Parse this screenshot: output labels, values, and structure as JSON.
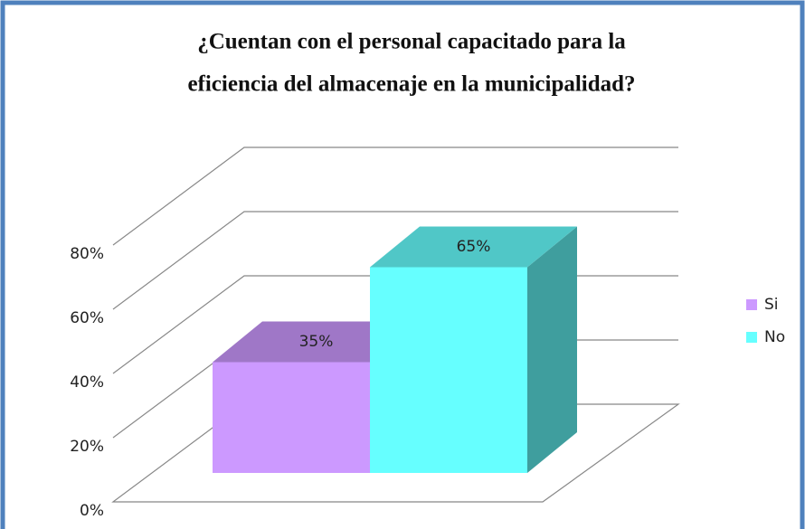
{
  "chart_data": {
    "type": "bar3d",
    "title": [
      "¿Cuentan con el personal capacitado para la",
      "eficiencia del almacenaje en la municipalidad?"
    ],
    "categories": [
      null
    ],
    "series": [
      {
        "name": "Si",
        "color": "#cc99ff",
        "values": [
          35
        ],
        "value_labels": [
          "35%"
        ]
      },
      {
        "name": "No",
        "color": "#66ffff",
        "values": [
          65
        ],
        "value_labels": [
          "65%"
        ]
      }
    ],
    "ylim": [
      0,
      80
    ],
    "yticks": [
      {
        "value": 0,
        "label": "0%"
      },
      {
        "value": 20,
        "label": "20%"
      },
      {
        "value": 40,
        "label": "40%"
      },
      {
        "value": 60,
        "label": "60%"
      },
      {
        "value": 80,
        "label": "80%"
      }
    ],
    "grid": true,
    "legend": "right"
  }
}
